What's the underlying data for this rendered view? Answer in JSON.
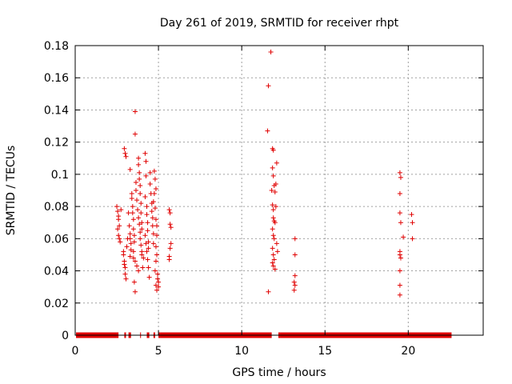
{
  "chart_data": {
    "type": "scatter",
    "title": "Day 261 of 2019, SRMTID for receiver rhpt",
    "xlabel": "GPS time / hours",
    "ylabel": "SRMTID / TECUs",
    "xlim": [
      0,
      24.5
    ],
    "ylim": [
      0,
      0.18
    ],
    "xticks": [
      "0",
      "5",
      "10",
      "15",
      "20"
    ],
    "xtick_values": [
      0,
      5,
      10,
      15,
      20
    ],
    "yticks": [
      "0",
      "0.02",
      "0.04",
      "0.06",
      "0.08",
      "0.1",
      "0.12",
      "0.14",
      "0.16",
      "0.18"
    ],
    "ytick_values": [
      0,
      0.02,
      0.04,
      0.06,
      0.08,
      0.1,
      0.12,
      0.14,
      0.16,
      0.18
    ],
    "grid": true,
    "color": "#e00000",
    "marker": "plus",
    "zero_segments": [
      [
        0.05,
        2.6
      ],
      [
        2.95,
        3.05
      ],
      [
        3.2,
        3.35
      ],
      [
        3.9,
        3.95
      ],
      [
        4.3,
        4.45
      ],
      [
        4.7,
        4.8
      ],
      [
        5.0,
        11.8
      ],
      [
        12.2,
        22.6
      ]
    ],
    "series": [
      {
        "name": "SRMTID",
        "points": [
          [
            2.5,
            0.08
          ],
          [
            2.55,
            0.077
          ],
          [
            2.6,
            0.074
          ],
          [
            2.6,
            0.072
          ],
          [
            2.65,
            0.068
          ],
          [
            2.55,
            0.066
          ],
          [
            2.6,
            0.062
          ],
          [
            2.65,
            0.06
          ],
          [
            2.7,
            0.058
          ],
          [
            2.75,
            0.078
          ],
          [
            2.9,
            0.052
          ],
          [
            2.9,
            0.05
          ],
          [
            2.95,
            0.046
          ],
          [
            2.95,
            0.044
          ],
          [
            3.0,
            0.042
          ],
          [
            3.0,
            0.038
          ],
          [
            3.05,
            0.035
          ],
          [
            3.1,
            0.055
          ],
          [
            3.15,
            0.06
          ],
          [
            2.95,
            0.116
          ],
          [
            3.0,
            0.113
          ],
          [
            3.05,
            0.111
          ],
          [
            3.2,
            0.076
          ],
          [
            3.25,
            0.068
          ],
          [
            3.3,
            0.063
          ],
          [
            3.3,
            0.06
          ],
          [
            3.35,
            0.057
          ],
          [
            3.35,
            0.053
          ],
          [
            3.3,
            0.049
          ],
          [
            3.3,
            0.103
          ],
          [
            3.4,
            0.088
          ],
          [
            3.4,
            0.085
          ],
          [
            3.45,
            0.08
          ],
          [
            3.45,
            0.076
          ],
          [
            3.5,
            0.072
          ],
          [
            3.5,
            0.066
          ],
          [
            3.55,
            0.062
          ],
          [
            3.55,
            0.058
          ],
          [
            3.5,
            0.052
          ],
          [
            3.5,
            0.048
          ],
          [
            3.6,
            0.139
          ],
          [
            3.6,
            0.125
          ],
          [
            3.65,
            0.095
          ],
          [
            3.65,
            0.09
          ],
          [
            3.7,
            0.084
          ],
          [
            3.6,
            0.046
          ],
          [
            3.55,
            0.033
          ],
          [
            3.6,
            0.027
          ],
          [
            3.7,
            0.043
          ],
          [
            3.75,
            0.078
          ],
          [
            3.8,
            0.11
          ],
          [
            3.8,
            0.106
          ],
          [
            3.85,
            0.101
          ],
          [
            3.85,
            0.097
          ],
          [
            3.9,
            0.093
          ],
          [
            3.9,
            0.088
          ],
          [
            3.95,
            0.082
          ],
          [
            3.95,
            0.076
          ],
          [
            4.0,
            0.07
          ],
          [
            4.0,
            0.066
          ],
          [
            3.8,
            0.073
          ],
          [
            3.85,
            0.069
          ],
          [
            3.9,
            0.064
          ],
          [
            3.9,
            0.06
          ],
          [
            3.95,
            0.056
          ],
          [
            4.0,
            0.052
          ],
          [
            4.0,
            0.05
          ],
          [
            3.8,
            0.04
          ],
          [
            4.05,
            0.042
          ],
          [
            4.1,
            0.048
          ],
          [
            4.2,
            0.113
          ],
          [
            4.25,
            0.108
          ],
          [
            4.25,
            0.099
          ],
          [
            4.2,
            0.086
          ],
          [
            4.3,
            0.08
          ],
          [
            4.3,
            0.075
          ],
          [
            4.35,
            0.07
          ],
          [
            4.35,
            0.065
          ],
          [
            4.4,
            0.058
          ],
          [
            4.4,
            0.054
          ],
          [
            4.2,
            0.062
          ],
          [
            4.25,
            0.057
          ],
          [
            4.3,
            0.052
          ],
          [
            4.35,
            0.047
          ],
          [
            4.4,
            0.042
          ],
          [
            4.45,
            0.036
          ],
          [
            4.5,
            0.101
          ],
          [
            4.5,
            0.094
          ],
          [
            4.55,
            0.088
          ],
          [
            4.6,
            0.082
          ],
          [
            4.6,
            0.077
          ],
          [
            4.65,
            0.073
          ],
          [
            4.65,
            0.068
          ],
          [
            4.7,
            0.063
          ],
          [
            4.7,
            0.057
          ],
          [
            4.75,
            0.102
          ],
          [
            4.8,
            0.097
          ],
          [
            4.85,
            0.091
          ],
          [
            4.8,
            0.079
          ],
          [
            4.85,
            0.072
          ],
          [
            4.9,
            0.068
          ],
          [
            4.9,
            0.062
          ],
          [
            4.85,
            0.055
          ],
          [
            4.9,
            0.05
          ],
          [
            4.85,
            0.046
          ],
          [
            4.8,
            0.04
          ],
          [
            4.95,
            0.038
          ],
          [
            4.95,
            0.035
          ],
          [
            4.85,
            0.031
          ],
          [
            4.9,
            0.028
          ],
          [
            5.0,
            0.03
          ],
          [
            5.0,
            0.033
          ],
          [
            4.75,
            0.088
          ],
          [
            4.7,
            0.083
          ],
          [
            5.65,
            0.078
          ],
          [
            5.7,
            0.076
          ],
          [
            5.7,
            0.069
          ],
          [
            5.75,
            0.067
          ],
          [
            5.75,
            0.057
          ],
          [
            5.7,
            0.054
          ],
          [
            5.65,
            0.049
          ],
          [
            5.65,
            0.047
          ],
          [
            11.6,
            0.155
          ],
          [
            11.55,
            0.127
          ],
          [
            11.6,
            0.027
          ],
          [
            11.75,
            0.176
          ],
          [
            11.85,
            0.116
          ],
          [
            11.9,
            0.115
          ],
          [
            11.85,
            0.104
          ],
          [
            11.9,
            0.099
          ],
          [
            11.95,
            0.093
          ],
          [
            11.8,
            0.09
          ],
          [
            12.0,
            0.089
          ],
          [
            12.05,
            0.094
          ],
          [
            12.1,
            0.107
          ],
          [
            11.85,
            0.081
          ],
          [
            11.9,
            0.078
          ],
          [
            11.9,
            0.073
          ],
          [
            11.95,
            0.071
          ],
          [
            12.0,
            0.07
          ],
          [
            12.05,
            0.08
          ],
          [
            11.85,
            0.066
          ],
          [
            11.9,
            0.062
          ],
          [
            11.95,
            0.06
          ],
          [
            11.85,
            0.054
          ],
          [
            11.9,
            0.05
          ],
          [
            11.95,
            0.047
          ],
          [
            11.85,
            0.045
          ],
          [
            11.9,
            0.043
          ],
          [
            12.0,
            0.041
          ],
          [
            12.1,
            0.057
          ],
          [
            12.15,
            0.052
          ],
          [
            13.2,
            0.06
          ],
          [
            13.2,
            0.05
          ],
          [
            13.2,
            0.037
          ],
          [
            13.15,
            0.033
          ],
          [
            13.2,
            0.031
          ],
          [
            13.15,
            0.028
          ],
          [
            19.5,
            0.101
          ],
          [
            19.55,
            0.098
          ],
          [
            19.5,
            0.088
          ],
          [
            19.5,
            0.076
          ],
          [
            19.55,
            0.07
          ],
          [
            19.5,
            0.052
          ],
          [
            19.5,
            0.05
          ],
          [
            19.55,
            0.048
          ],
          [
            19.5,
            0.04
          ],
          [
            19.5,
            0.031
          ],
          [
            19.5,
            0.025
          ],
          [
            19.7,
            0.061
          ],
          [
            20.2,
            0.075
          ],
          [
            20.25,
            0.07
          ],
          [
            20.25,
            0.06
          ]
        ]
      }
    ]
  }
}
